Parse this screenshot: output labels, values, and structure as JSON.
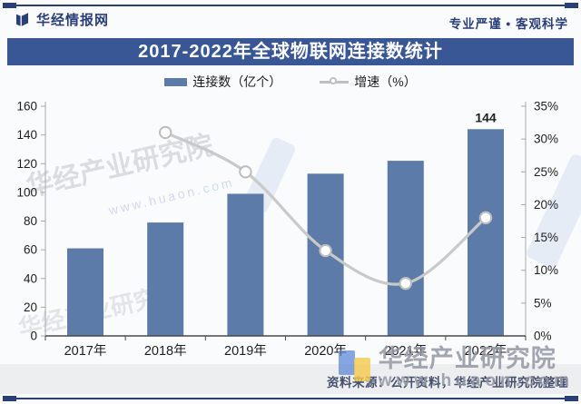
{
  "header": {
    "brand": "华经情报网",
    "slogan": "专业严谨 • 客观科学"
  },
  "title": "2017-2022年全球物联网连接数统计",
  "legend": {
    "bars": "连接数（亿个）",
    "line": "增速（%）"
  },
  "chart_data": {
    "type": "bar",
    "title": "2017-2022年全球物联网连接数统计",
    "categories": [
      "2017年",
      "2018年",
      "2019年",
      "2020年",
      "2021年",
      "2022年"
    ],
    "series": [
      {
        "name": "连接数（亿个）",
        "type": "bar",
        "axis": "left",
        "color": "#5C7BA9",
        "values": [
          61,
          79,
          99,
          113,
          122,
          144
        ]
      },
      {
        "name": "增速（%）",
        "type": "line",
        "axis": "right",
        "color": "#C9C9C9",
        "marker": "open-circle",
        "values": [
          null,
          31,
          25,
          13,
          8,
          18
        ]
      }
    ],
    "value_labels": [
      null,
      null,
      null,
      null,
      null,
      "144"
    ],
    "left_axis": {
      "min": 0,
      "max": 160,
      "step": 20,
      "ticks": [
        "0",
        "20",
        "40",
        "60",
        "80",
        "100",
        "120",
        "140",
        "160"
      ]
    },
    "right_axis": {
      "min": 0,
      "max": 35,
      "step": 5,
      "suffix": "%",
      "ticks": [
        "0%",
        "5%",
        "10%",
        "15%",
        "20%",
        "25%",
        "30%",
        "35%"
      ]
    },
    "grid": false,
    "legend_position": "top"
  },
  "footer": {
    "source": "资料来源：公开资料，华经产业研究院整理"
  },
  "watermark": {
    "name": "华经产业研究院",
    "site": "www.huaon.com"
  },
  "colors": {
    "banner": "#3A5795",
    "navy": "#2B3F77",
    "bar": "#5C7BA9",
    "line": "#C9C9C9",
    "footer_band": "#EDEEF0"
  }
}
